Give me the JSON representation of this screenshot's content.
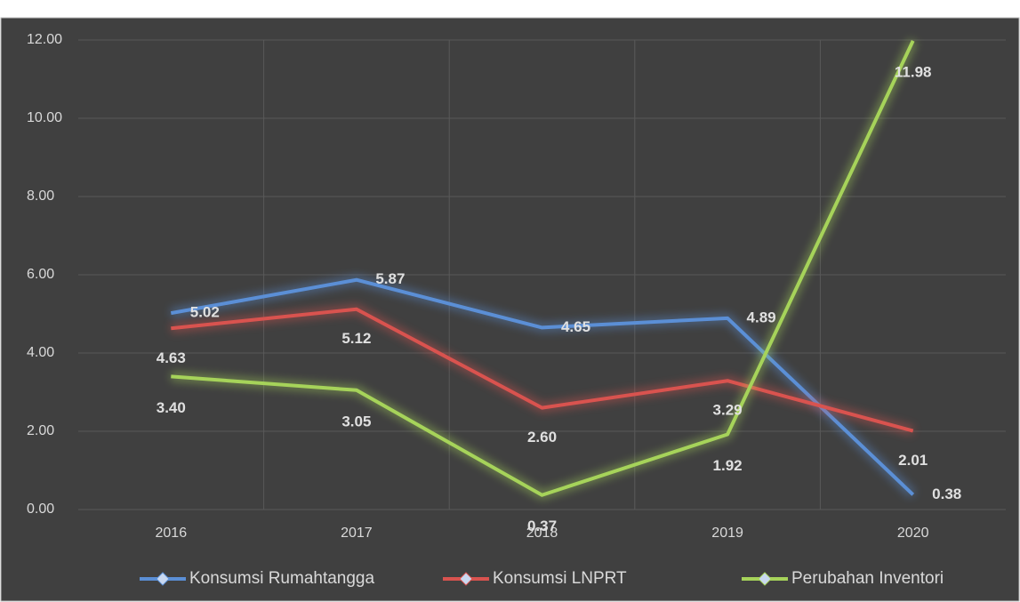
{
  "chart_data": {
    "type": "line",
    "categories": [
      "2016",
      "2017",
      "2018",
      "2019",
      "2020"
    ],
    "series": [
      {
        "name": "Konsumsi Rumahtangga",
        "color": "#5b8fd6",
        "values": [
          5.02,
          5.87,
          4.65,
          4.89,
          0.38
        ],
        "value_labels": [
          "5.02",
          "5.87",
          "4.65",
          "4.89",
          "0.38"
        ]
      },
      {
        "name": "Konsumsi LNPRT",
        "color": "#d9534f",
        "values": [
          4.63,
          5.12,
          2.6,
          3.29,
          2.01
        ],
        "value_labels": [
          "4.63",
          "5.12",
          "2.60",
          "3.29",
          "2.01"
        ]
      },
      {
        "name": "Perubahan Inventori",
        "color": "#a6d35a",
        "values": [
          3.4,
          3.05,
          0.37,
          1.92,
          11.98
        ],
        "value_labels": [
          "3.40",
          "3.05",
          "0.37",
          "1.92",
          "11.98"
        ]
      }
    ],
    "ylim": [
      0,
      12
    ],
    "yticks": [
      {
        "value": 0,
        "label": "0.00"
      },
      {
        "value": 2,
        "label": "2.00"
      },
      {
        "value": 4,
        "label": "4.00"
      },
      {
        "value": 6,
        "label": "6.00"
      },
      {
        "value": 8,
        "label": "8.00"
      },
      {
        "value": 10,
        "label": "10.00"
      },
      {
        "value": 12,
        "label": "12.00"
      }
    ],
    "grid": true,
    "legend": "bottom"
  }
}
